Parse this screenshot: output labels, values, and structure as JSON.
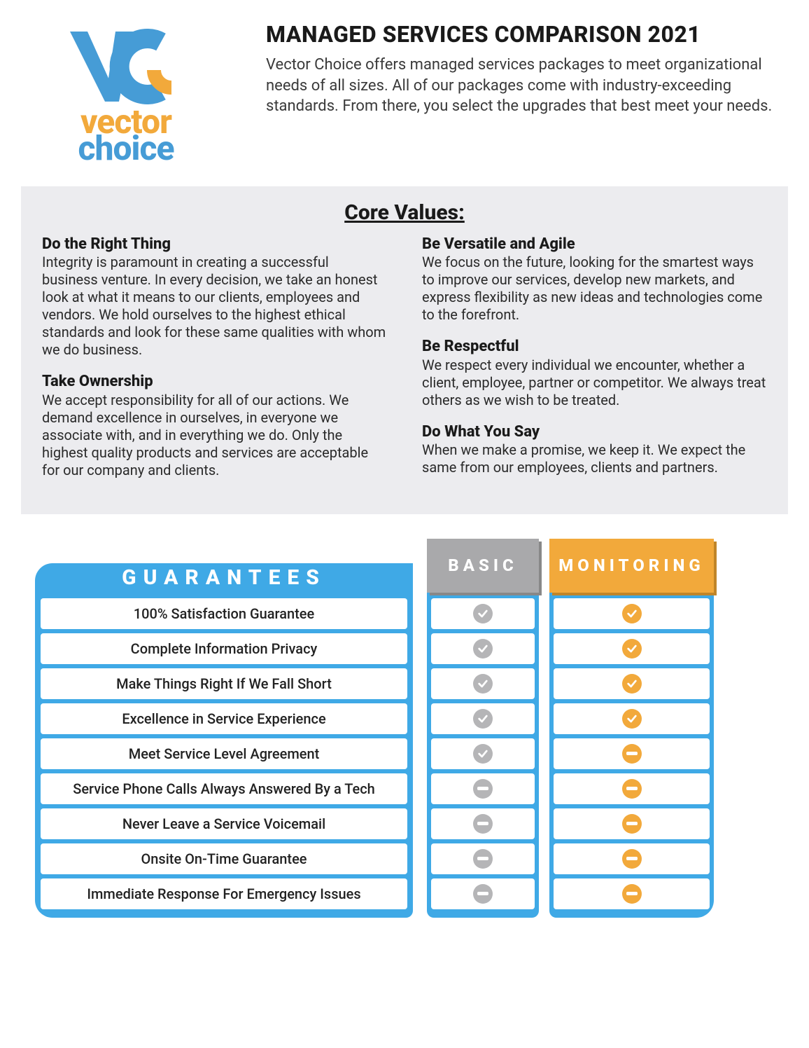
{
  "logo": {
    "line1": "vector",
    "line2": "choice",
    "blue": "#469cd6",
    "orange": "#f2a93b"
  },
  "header": {
    "title": "MANAGED SERVICES COMPARISON 2021",
    "intro": "Vector Choice offers managed services packages to meet organizational needs of all sizes. All of our packages come with industry-exceeding standards. From there, you select the upgrades that best meet your needs."
  },
  "core_values": {
    "title": "Core Values:",
    "col1": [
      {
        "heading": "Do the Right Thing",
        "body": "Integrity is paramount in creating a successful business venture. In every decision, we take an honest look at what it means to our clients, employees and vendors. We hold ourselves to the highest ethical standards and look for these same qualities with whom we do business."
      },
      {
        "heading": "Take Ownership",
        "body": "We accept responsibility for all of our actions. We demand excellence in ourselves, in everyone we associate with, and in everything we do. Only the highest quality products and services are acceptable for our company and clients."
      }
    ],
    "col2": [
      {
        "heading": "Be Versatile and Agile",
        "body": "We focus on the future, looking for the smartest ways to improve our services, develop new markets, and express flexibility as new ideas and technologies come to the forefront."
      },
      {
        "heading": "Be Respectful",
        "body": "We respect every individual we encounter, whether a client, employee, partner or competitor. We always treat others as we wish to be treated."
      },
      {
        "heading": "Do What You Say",
        "body": "When we make a promise, we keep it. We expect the same from our employees, clients and partners."
      }
    ]
  },
  "comparison": {
    "guarantees_label": "GUARANTEES",
    "plans": [
      {
        "name": "BASIC",
        "bg": "#a9a9ab",
        "check_color": "#b5b5b7"
      },
      {
        "name": "MONITORING",
        "bg": "#f2a93b",
        "check_color": "#f2a93b"
      }
    ],
    "table_blue": "#3fa9e6",
    "rows": [
      {
        "label": "100% Satisfaction Guarantee",
        "basic": "check",
        "monitoring": "check"
      },
      {
        "label": "Complete Information Privacy",
        "basic": "check",
        "monitoring": "check"
      },
      {
        "label": "Make Things Right If We Fall Short",
        "basic": "check",
        "monitoring": "check"
      },
      {
        "label": "Excellence in Service Experience",
        "basic": "check",
        "monitoring": "check"
      },
      {
        "label": "Meet Service Level Agreement",
        "basic": "check",
        "monitoring": "minus"
      },
      {
        "label": "Service Phone Calls Always Answered By a Tech",
        "basic": "minus",
        "monitoring": "minus"
      },
      {
        "label": "Never Leave a Service Voicemail",
        "basic": "minus",
        "monitoring": "minus"
      },
      {
        "label": "Onsite On-Time Guarantee",
        "basic": "minus",
        "monitoring": "minus"
      },
      {
        "label": "Immediate Response For Emergency Issues",
        "basic": "minus",
        "monitoring": "minus"
      }
    ]
  }
}
